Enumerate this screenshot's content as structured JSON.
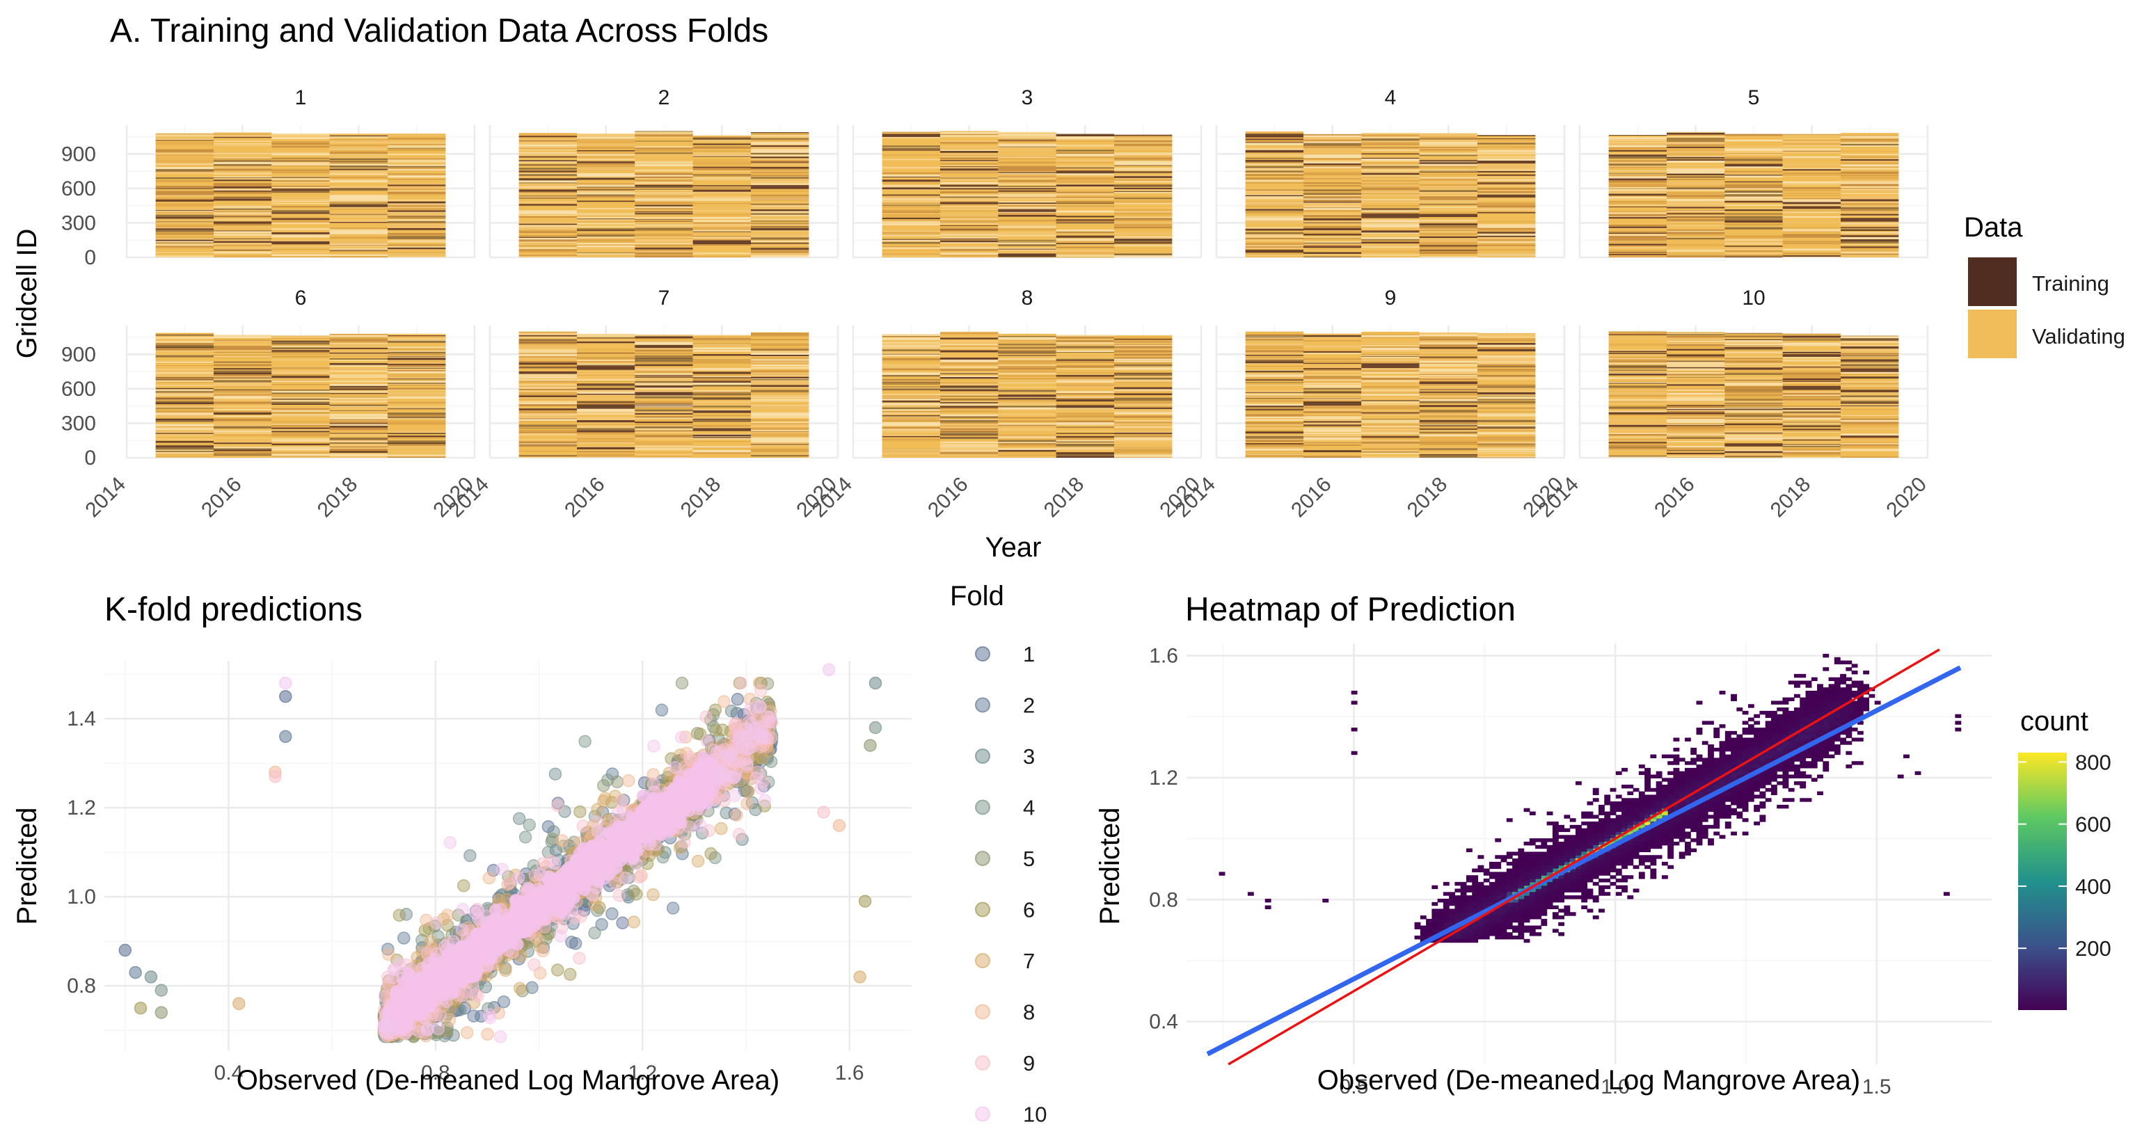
{
  "chart_data": [
    {
      "type": "heatmap",
      "title": "A. Training and Validation Data Across Folds",
      "xlabel": "Year",
      "ylabel": "Gridcell ID",
      "facets": [
        "1",
        "2",
        "3",
        "4",
        "5",
        "6",
        "7",
        "8",
        "9",
        "10"
      ],
      "facet_layout": {
        "rows": 2,
        "cols": 5
      },
      "xlim": [
        2014,
        2020
      ],
      "x_ticks": [
        "2014",
        "2016",
        "2018",
        "2020"
      ],
      "ylim": [
        0,
        1150
      ],
      "y_ticks": [
        "0",
        "300",
        "600",
        "900"
      ],
      "years": [
        2015,
        2016,
        2017,
        2018,
        2019
      ],
      "gridcell_count": 1100,
      "legend": {
        "title": "Data",
        "position": "right",
        "entries": [
          {
            "label": "Training",
            "color": "#512d21"
          },
          {
            "label": "Validating",
            "color": "#f1bd58"
          }
        ]
      },
      "training_share_per_fold": 0.1,
      "grid": true
    },
    {
      "type": "scatter",
      "title": "K-fold predictions",
      "xlabel": "Observed (De-meaned Log Mangrove Area)",
      "ylabel": "Predicted",
      "xlim": [
        0.16,
        1.72
      ],
      "x_ticks": [
        "0.4",
        "0.8",
        "1.2",
        "1.6"
      ],
      "ylim": [
        0.655,
        1.53
      ],
      "y_ticks": [
        "0.8",
        "1.0",
        "1.2",
        "1.4"
      ],
      "legend": {
        "title": "Fold",
        "position": "right",
        "entries": [
          {
            "label": "1",
            "color": "#5b6e94"
          },
          {
            "label": "2",
            "color": "#627a96"
          },
          {
            "label": "3",
            "color": "#6e8a8c"
          },
          {
            "label": "4",
            "color": "#7c9488"
          },
          {
            "label": "5",
            "color": "#8c9670"
          },
          {
            "label": "6",
            "color": "#a49a55"
          },
          {
            "label": "7",
            "color": "#d8ab6a"
          },
          {
            "label": "8",
            "color": "#f2b893"
          },
          {
            "label": "9",
            "color": "#f8c0cc"
          },
          {
            "label": "10",
            "color": "#f3c6ee"
          }
        ]
      },
      "point_cloud": {
        "center_slope": 0.88,
        "center_intercept": 0.1,
        "x_range": [
          0.7,
          1.45
        ],
        "n_points": 3200
      },
      "outliers": [
        {
          "x": 0.2,
          "y": 0.88
        },
        {
          "x": 0.22,
          "y": 0.83
        },
        {
          "x": 0.25,
          "y": 0.82
        },
        {
          "x": 0.27,
          "y": 0.79
        },
        {
          "x": 0.27,
          "y": 0.74
        },
        {
          "x": 0.23,
          "y": 0.75
        },
        {
          "x": 0.42,
          "y": 0.76
        },
        {
          "x": 0.49,
          "y": 1.28
        },
        {
          "x": 0.49,
          "y": 1.27
        },
        {
          "x": 0.51,
          "y": 1.48
        },
        {
          "x": 0.51,
          "y": 1.45
        },
        {
          "x": 0.51,
          "y": 1.36
        },
        {
          "x": 1.65,
          "y": 1.48
        },
        {
          "x": 1.65,
          "y": 1.38
        },
        {
          "x": 1.64,
          "y": 1.34
        },
        {
          "x": 1.63,
          "y": 0.99
        },
        {
          "x": 1.62,
          "y": 0.82
        },
        {
          "x": 1.58,
          "y": 1.16
        },
        {
          "x": 1.55,
          "y": 1.19
        },
        {
          "x": 1.56,
          "y": 1.51
        }
      ],
      "grid": true
    },
    {
      "type": "heatmap",
      "title": "Heatmap of Prediction",
      "xlabel": "Observed (De-meaned Log Mangrove Area)",
      "ylabel": "Predicted",
      "xlim": [
        0.18,
        1.72
      ],
      "x_ticks": [
        "0.5",
        "1.0",
        "1.5"
      ],
      "ylim": [
        0.26,
        1.64
      ],
      "y_ticks": [
        "0.4",
        "0.8",
        "1.2",
        "1.6"
      ],
      "colorbar": {
        "title": "count",
        "ticks": [
          "200",
          "400",
          "600",
          "800"
        ],
        "range": [
          1,
          830
        ],
        "colors": [
          "#440154",
          "#3b528b",
          "#21918c",
          "#5ec962",
          "#fde725"
        ]
      },
      "lines": [
        {
          "name": "fit",
          "color": "#3366ee",
          "slope": 0.88,
          "intercept": 0.1
        },
        {
          "name": "identity",
          "color": "#ee1111",
          "slope": 1.0,
          "intercept": 0.0
        }
      ],
      "grid": true
    }
  ]
}
